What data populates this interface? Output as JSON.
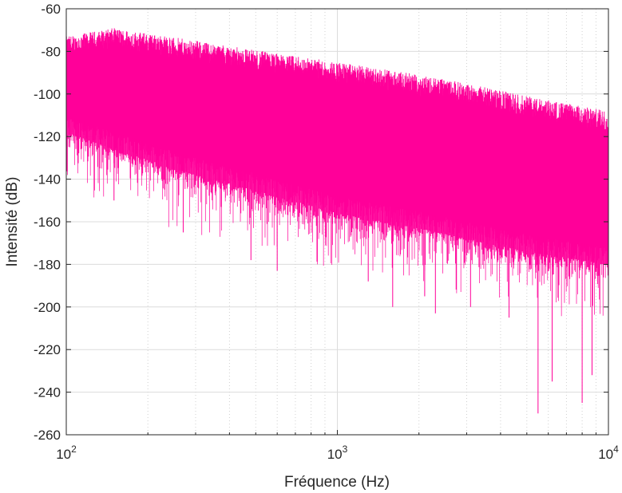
{
  "chart_data": {
    "type": "line",
    "xlabel": "Fréquence (Hz)",
    "ylabel": "Intensité (dB)",
    "xscale": "log",
    "xlim": [
      100,
      10000
    ],
    "ylim": [
      -260,
      -60
    ],
    "grid": true,
    "line_color": "#FF0099",
    "x_ticks": [
      {
        "value": 100,
        "base": "10",
        "exp": "2"
      },
      {
        "value": 1000,
        "base": "10",
        "exp": "3"
      },
      {
        "value": 10000,
        "base": "10",
        "exp": "4"
      }
    ],
    "y_ticks": [
      "-60",
      "-80",
      "-100",
      "-120",
      "-140",
      "-160",
      "-180",
      "-200",
      "-220",
      "-240",
      "-260"
    ],
    "series": [
      {
        "type": "envelope",
        "description_points": [
          {
            "x": 100,
            "upper": -80,
            "lower_dense": -110
          },
          {
            "x": 150,
            "upper": -76,
            "lower_dense": -118
          },
          {
            "x": 300,
            "upper": -82,
            "lower_dense": -130
          },
          {
            "x": 600,
            "upper": -88,
            "lower_dense": -140
          },
          {
            "x": 1000,
            "upper": -92,
            "lower_dense": -148
          },
          {
            "x": 2000,
            "upper": -98,
            "lower_dense": -155
          },
          {
            "x": 3000,
            "upper": -102,
            "lower_dense": -160
          },
          {
            "x": 5000,
            "upper": -108,
            "lower_dense": -166
          },
          {
            "x": 10000,
            "upper": -115,
            "lower_dense": -172
          }
        ],
        "spikes": [
          {
            "x": 103,
            "y": -125
          },
          {
            "x": 150,
            "y": -150
          },
          {
            "x": 270,
            "y": -165
          },
          {
            "x": 480,
            "y": -178
          },
          {
            "x": 600,
            "y": -183
          },
          {
            "x": 1300,
            "y": -188
          },
          {
            "x": 1600,
            "y": -200
          },
          {
            "x": 2100,
            "y": -195
          },
          {
            "x": 2300,
            "y": -203
          },
          {
            "x": 3100,
            "y": -200
          },
          {
            "x": 4300,
            "y": -205
          },
          {
            "x": 5500,
            "y": -250
          },
          {
            "x": 6200,
            "y": -235
          },
          {
            "x": 8000,
            "y": -245
          },
          {
            "x": 8700,
            "y": -232
          }
        ]
      }
    ]
  }
}
